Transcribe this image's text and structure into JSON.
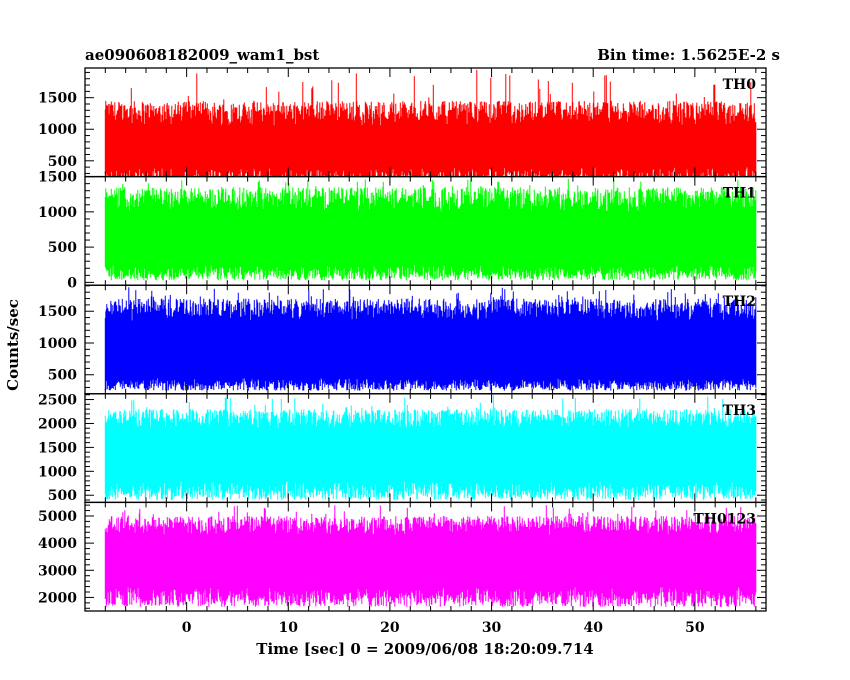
{
  "chart_data": {
    "type": "line",
    "title_left": "ae090608182009_wam1_bst",
    "title_right": "Bin time: 1.5625E-2 s",
    "xlabel": "Time [sec] 0 = 2009/06/08 18:20:09.714",
    "ylabel": "Counts/sec",
    "x_range": [
      -8,
      56
    ],
    "xlim": [
      -10,
      57
    ],
    "xticks": [
      0,
      10,
      20,
      30,
      40,
      50
    ],
    "grid": false,
    "panels": [
      {
        "name": "TH0",
        "color": "#ff0000",
        "ylim": [
          250,
          1970
        ],
        "yticks": [
          500,
          1000,
          1500
        ],
        "mean": 700,
        "low_range": [
          100,
          400
        ],
        "high_range": [
          1050,
          1450
        ],
        "spike_max": 1950
      },
      {
        "name": "TH1",
        "color": "#00ff00",
        "ylim": [
          -40,
          1500
        ],
        "yticks": [
          0,
          500,
          1000,
          1500
        ],
        "mean": 600,
        "low_range": [
          30,
          250
        ],
        "high_range": [
          1000,
          1350
        ],
        "spike_max": 1470
      },
      {
        "name": "TH2",
        "color": "#0000ff",
        "ylim": [
          200,
          1910
        ],
        "yticks": [
          500,
          1000,
          1500
        ],
        "mean": 800,
        "low_range": [
          250,
          450
        ],
        "high_range": [
          1350,
          1700
        ],
        "spike_max": 1880
      },
      {
        "name": "TH3",
        "color": "#00ffff",
        "ylim": [
          350,
          2620
        ],
        "yticks": [
          500,
          1000,
          1500,
          2000,
          2500
        ],
        "mean": 1200,
        "low_range": [
          400,
          800
        ],
        "high_range": [
          1900,
          2300
        ],
        "spike_max": 2600
      },
      {
        "name": "TH0123",
        "color": "#ff00ff",
        "ylim": [
          1500,
          5500
        ],
        "yticks": [
          2000,
          3000,
          4000,
          5000
        ],
        "mean": 3300,
        "low_range": [
          1650,
          2400
        ],
        "high_range": [
          4300,
          5000
        ],
        "spike_max": 5400
      }
    ]
  }
}
